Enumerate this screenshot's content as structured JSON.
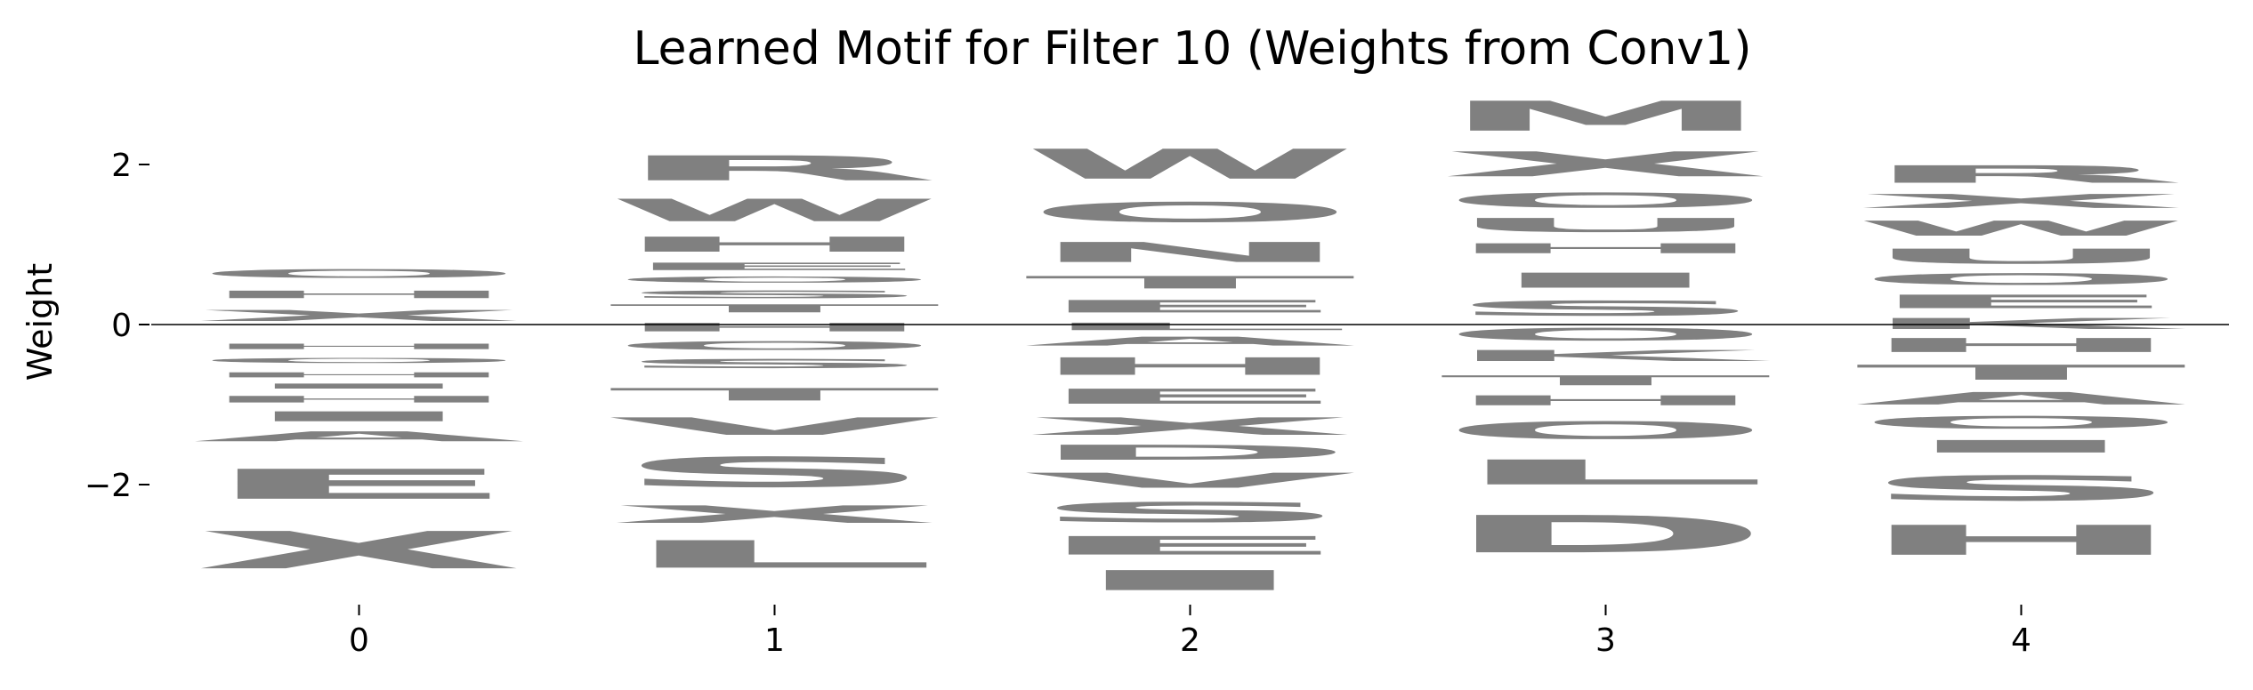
{
  "chart_data": {
    "type": "sequence-logo",
    "title": "Learned Motif for Filter 10 (Weights from Conv1)",
    "xlabel": "",
    "ylabel": "Weight",
    "x_ticks": [
      0,
      1,
      2,
      3,
      4
    ],
    "y_ticks": [
      -2,
      0,
      2
    ],
    "ylim": [
      -3.5,
      3.0
    ],
    "xlim": [
      -0.5,
      4.5
    ],
    "baseline": 0,
    "color": "#808080",
    "grid": false,
    "positions": [
      {
        "position": 0,
        "stack": [
          {
            "letter": "O",
            "bottom": 0.55,
            "top": 0.72
          },
          {
            "letter": "H",
            "bottom": 0.3,
            "top": 0.45
          },
          {
            "letter": "X",
            "bottom": 0.0,
            "top": 0.22
          },
          {
            "letter": "H",
            "bottom": -0.33,
            "top": -0.22
          },
          {
            "letter": "O",
            "bottom": -0.5,
            "top": -0.4
          },
          {
            "letter": "H",
            "bottom": -0.68,
            "top": -0.58
          },
          {
            "letter": "I",
            "bottom": -0.82,
            "top": -0.72
          },
          {
            "letter": "H",
            "bottom": -1.0,
            "top": -0.87
          },
          {
            "letter": "I",
            "bottom": -1.25,
            "top": -1.05
          },
          {
            "letter": "A",
            "bottom": -1.5,
            "top": -1.3
          },
          {
            "letter": "E",
            "bottom": -2.3,
            "top": -1.7
          },
          {
            "letter": "X",
            "bottom": -3.2,
            "top": -2.45
          }
        ]
      },
      {
        "position": 1,
        "stack": [
          {
            "letter": "R",
            "bottom": 1.7,
            "top": 2.2
          },
          {
            "letter": "W",
            "bottom": 1.2,
            "top": 1.65
          },
          {
            "letter": "H",
            "bottom": 0.85,
            "top": 1.15
          },
          {
            "letter": "E",
            "bottom": 0.65,
            "top": 0.8
          },
          {
            "letter": "O",
            "bottom": 0.5,
            "top": 0.62
          },
          {
            "letter": "S",
            "bottom": 0.3,
            "top": 0.45
          },
          {
            "letter": "T",
            "bottom": 0.12,
            "top": 0.28
          },
          {
            "letter": "H",
            "bottom": -0.12,
            "top": 0.05
          },
          {
            "letter": "O",
            "bottom": -0.35,
            "top": -0.18
          },
          {
            "letter": "S",
            "bottom": -0.58,
            "top": -0.4
          },
          {
            "letter": "T",
            "bottom": -1.0,
            "top": -0.75
          },
          {
            "letter": "V",
            "bottom": -1.45,
            "top": -1.1
          },
          {
            "letter": "S",
            "bottom": -2.15,
            "top": -1.55
          },
          {
            "letter": "X",
            "bottom": -2.55,
            "top": -2.2
          },
          {
            "letter": "L",
            "bottom": -3.15,
            "top": -2.6
          }
        ]
      },
      {
        "position": 2,
        "stack": [
          {
            "letter": "W",
            "bottom": 1.7,
            "top": 2.3
          },
          {
            "letter": "O",
            "bottom": 1.2,
            "top": 1.6
          },
          {
            "letter": "N",
            "bottom": 0.7,
            "top": 1.1
          },
          {
            "letter": "T",
            "bottom": 0.4,
            "top": 0.65
          },
          {
            "letter": "E",
            "bottom": 0.1,
            "top": 0.35
          },
          {
            "letter": "L",
            "bottom": -0.1,
            "top": 0.05
          },
          {
            "letter": "A",
            "bottom": -0.3,
            "top": -0.12
          },
          {
            "letter": "H",
            "bottom": -0.7,
            "top": -0.35
          },
          {
            "letter": "E",
            "bottom": -1.05,
            "top": -0.75
          },
          {
            "letter": "X",
            "bottom": -1.45,
            "top": -1.1
          },
          {
            "letter": "D",
            "bottom": -1.75,
            "top": -1.45
          },
          {
            "letter": "V",
            "bottom": -2.1,
            "top": -1.8
          },
          {
            "letter": "S",
            "bottom": -2.55,
            "top": -2.15
          },
          {
            "letter": "E",
            "bottom": -2.95,
            "top": -2.58
          },
          {
            "letter": "I",
            "bottom": -3.4,
            "top": -3.0
          }
        ]
      },
      {
        "position": 3,
        "stack": [
          {
            "letter": "M",
            "bottom": 2.3,
            "top": 2.9
          },
          {
            "letter": "X",
            "bottom": 1.75,
            "top": 2.25
          },
          {
            "letter": "O",
            "bottom": 1.4,
            "top": 1.7
          },
          {
            "letter": "U",
            "bottom": 1.1,
            "top": 1.38
          },
          {
            "letter": "H",
            "bottom": 0.85,
            "top": 1.05
          },
          {
            "letter": "I",
            "bottom": 0.4,
            "top": 0.7
          },
          {
            "letter": "S",
            "bottom": 0.05,
            "top": 0.35
          },
          {
            "letter": "O",
            "bottom": -0.25,
            "top": 0.0
          },
          {
            "letter": "K",
            "bottom": -0.5,
            "top": -0.28
          },
          {
            "letter": "T",
            "bottom": -0.8,
            "top": -0.6
          },
          {
            "letter": "H",
            "bottom": -1.05,
            "top": -0.85
          },
          {
            "letter": "O",
            "bottom": -1.5,
            "top": -1.15
          },
          {
            "letter": "L",
            "bottom": -2.1,
            "top": -1.6
          },
          {
            "letter": "D",
            "bottom": -3.0,
            "top": -2.25
          }
        ]
      },
      {
        "position": 4,
        "stack": [
          {
            "letter": "R",
            "bottom": 1.7,
            "top": 2.05
          },
          {
            "letter": "X",
            "bottom": 1.4,
            "top": 1.68
          },
          {
            "letter": "W",
            "bottom": 1.05,
            "top": 1.35
          },
          {
            "letter": "U",
            "bottom": 0.7,
            "top": 1.0
          },
          {
            "letter": "O",
            "bottom": 0.45,
            "top": 0.68
          },
          {
            "letter": "E",
            "bottom": 0.15,
            "top": 0.42
          },
          {
            "letter": "K",
            "bottom": -0.1,
            "top": 0.12
          },
          {
            "letter": "H",
            "bottom": -0.4,
            "top": -0.12
          },
          {
            "letter": "T",
            "bottom": -0.75,
            "top": -0.45
          },
          {
            "letter": "A",
            "bottom": -1.05,
            "top": -0.8
          },
          {
            "letter": "O",
            "bottom": -1.35,
            "top": -1.1
          },
          {
            "letter": "I",
            "bottom": -1.65,
            "top": -1.4
          },
          {
            "letter": "S",
            "bottom": -2.3,
            "top": -1.8
          },
          {
            "letter": "H",
            "bottom": -3.0,
            "top": -2.4
          }
        ]
      }
    ]
  }
}
